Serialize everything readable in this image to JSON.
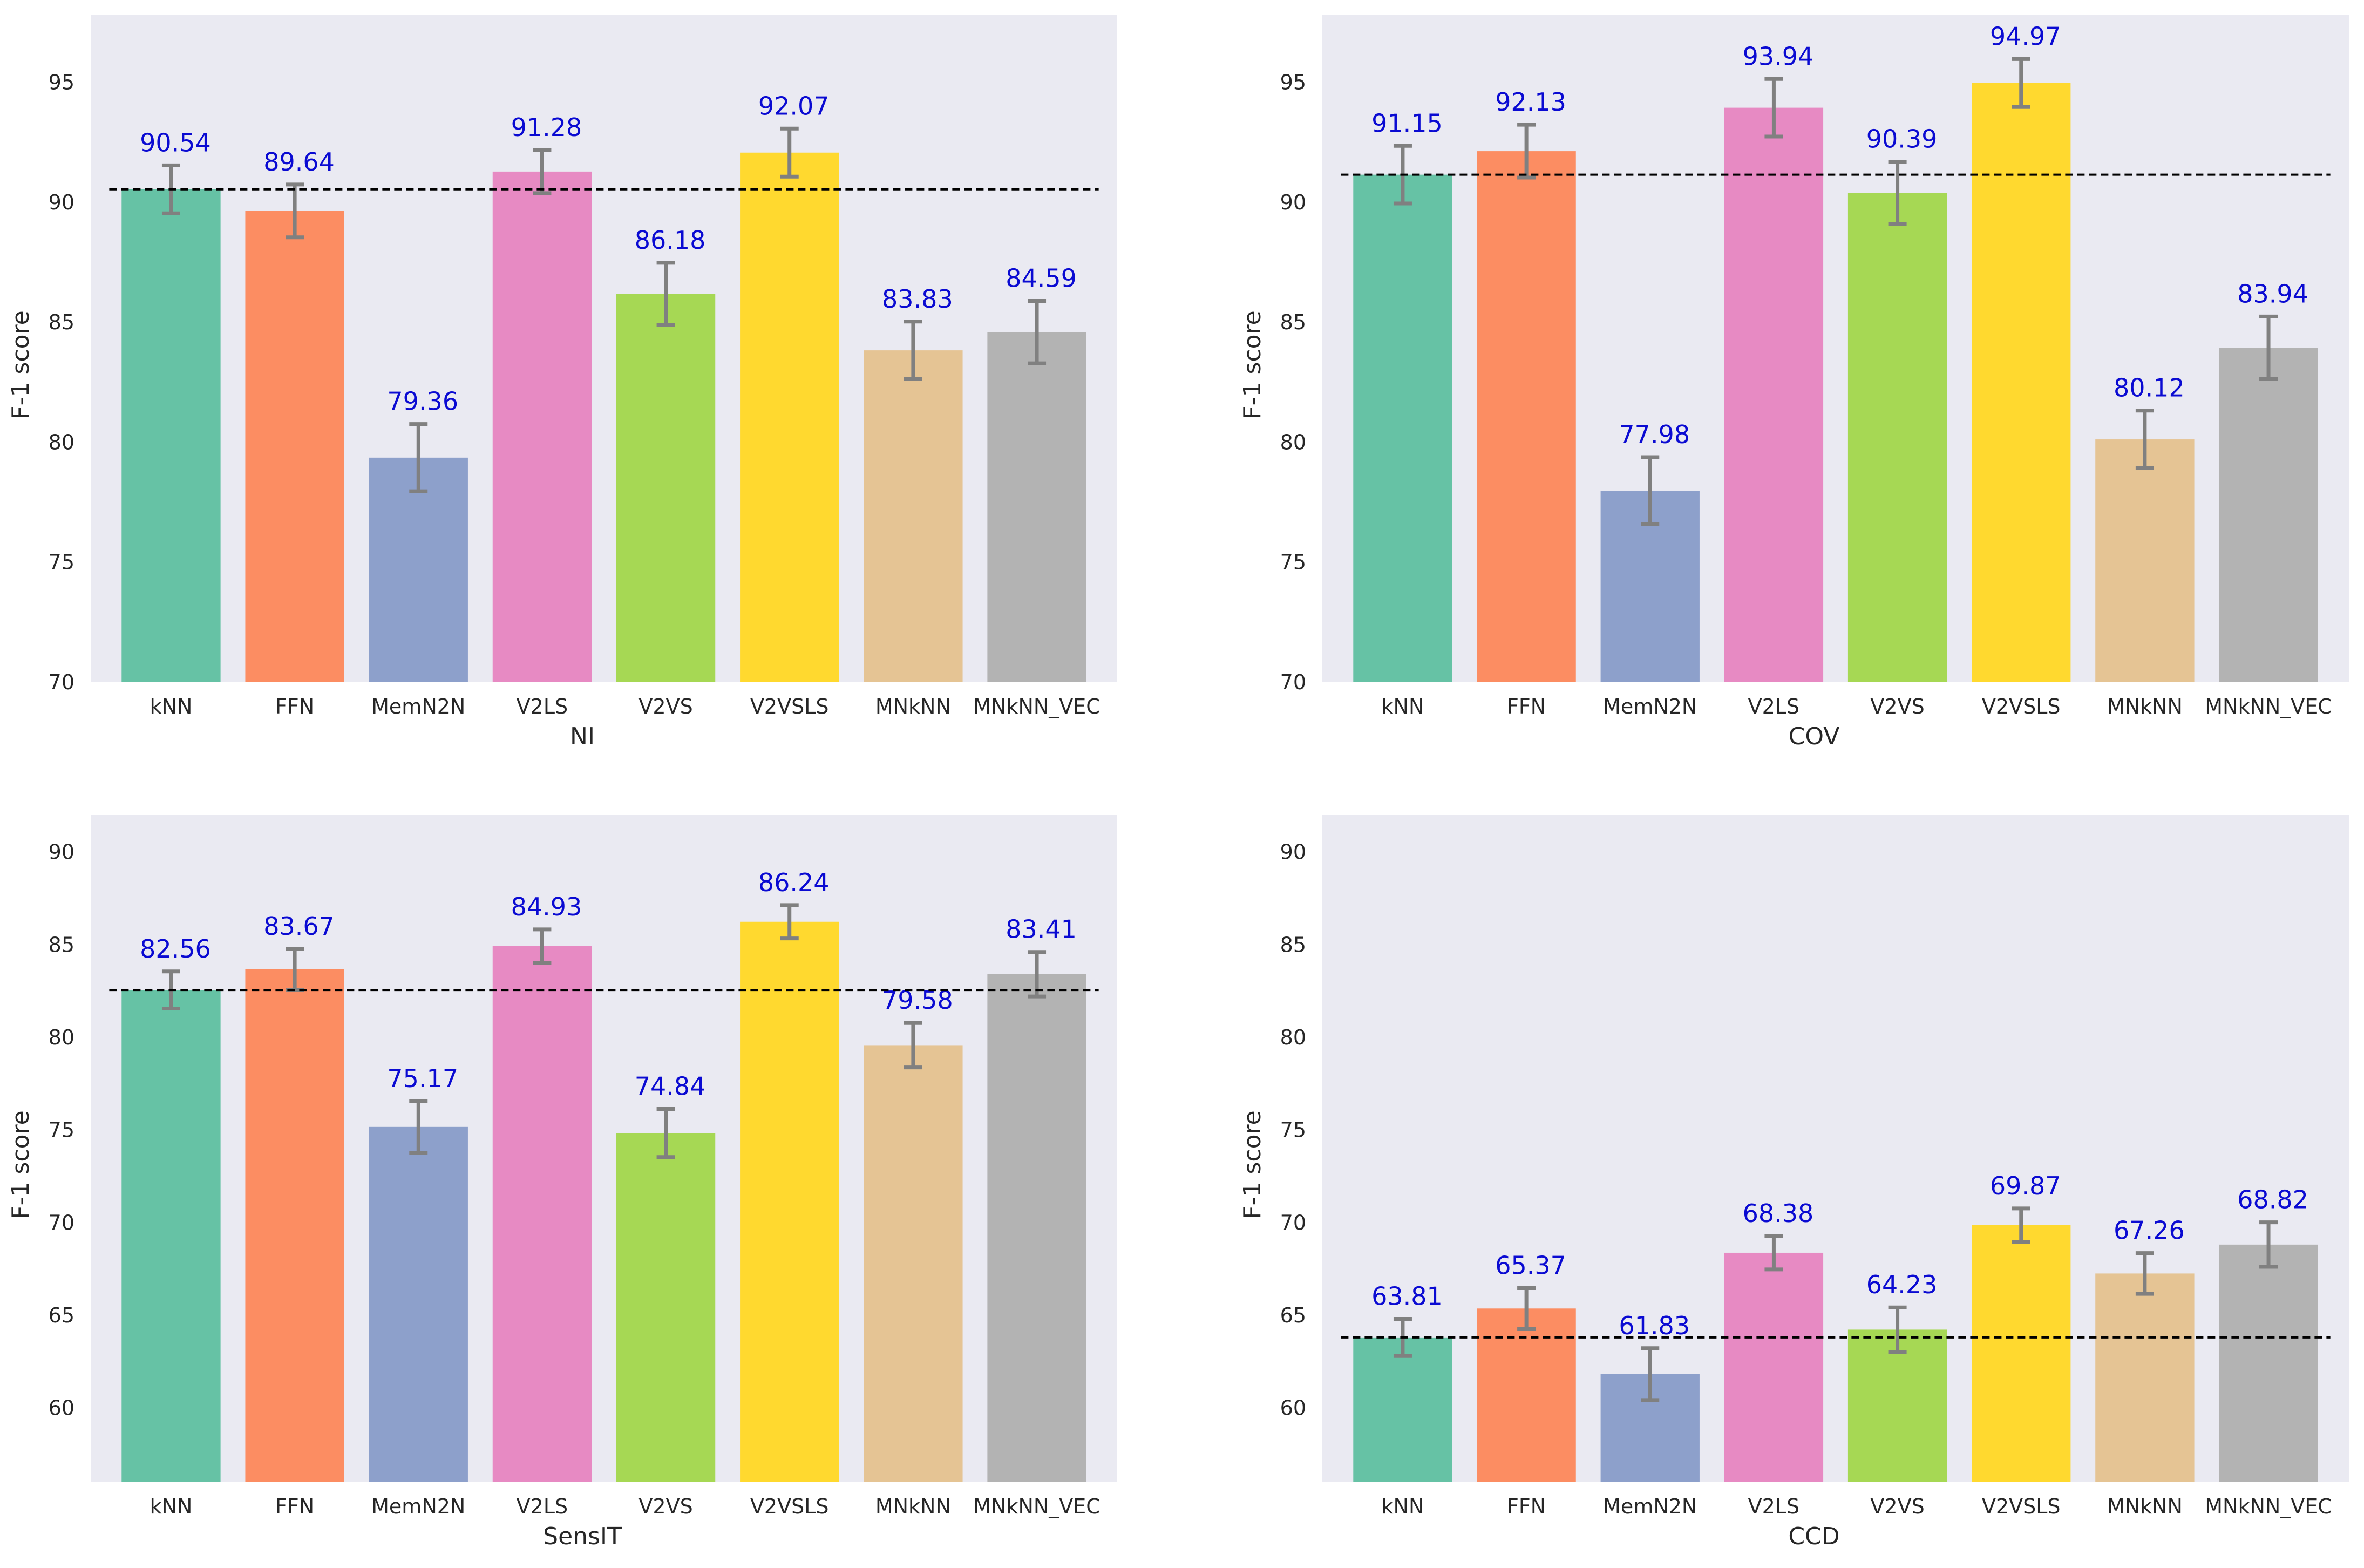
{
  "figure": {
    "background": "#ffffff",
    "panel_background": "#eaeaf2",
    "value_label_color": "#0a0ad2",
    "error_bar_color": "#808080",
    "baseline_color": "#000000",
    "colors": [
      "#66c2a5",
      "#fc8d62",
      "#8da0cb",
      "#e78ac3",
      "#a6d854",
      "#ffd92f",
      "#e5c494",
      "#b3b3b3"
    ]
  },
  "chart_data": [
    {
      "type": "bar",
      "xlabel": "NI",
      "ylabel": "F-1 score",
      "categories": [
        "kNN",
        "FFN",
        "MemN2N",
        "V2LS",
        "V2VS",
        "V2VSLS",
        "MNkNN",
        "MNkNN_VEC"
      ],
      "values": [
        90.54,
        89.64,
        79.36,
        91.28,
        86.18,
        92.07,
        83.83,
        84.59
      ],
      "value_labels": [
        "90.54",
        "89.64",
        "79.36",
        "91.28",
        "86.18",
        "92.07",
        "83.83",
        "84.59"
      ],
      "error": [
        1.0,
        1.1,
        1.4,
        0.9,
        1.3,
        1.0,
        1.2,
        1.3
      ],
      "baseline": 90.54,
      "ylim": [
        70,
        97.8
      ],
      "yticks": [
        70,
        75,
        80,
        85,
        90,
        95
      ],
      "grid": false
    },
    {
      "type": "bar",
      "xlabel": "COV",
      "ylabel": "F-1 score",
      "categories": [
        "kNN",
        "FFN",
        "MemN2N",
        "V2LS",
        "V2VS",
        "V2VSLS",
        "MNkNN",
        "MNkNN_VEC"
      ],
      "values": [
        91.15,
        92.13,
        77.98,
        93.94,
        90.39,
        94.97,
        80.12,
        83.94
      ],
      "value_labels": [
        "91.15",
        "92.13",
        "77.98",
        "93.94",
        "90.39",
        "94.97",
        "80.12",
        "83.94"
      ],
      "error": [
        1.2,
        1.1,
        1.4,
        1.2,
        1.3,
        1.0,
        1.2,
        1.3
      ],
      "baseline": 91.15,
      "ylim": [
        70,
        97.8
      ],
      "yticks": [
        70,
        75,
        80,
        85,
        90,
        95
      ],
      "grid": false
    },
    {
      "type": "bar",
      "xlabel": "SensIT",
      "ylabel": "F-1 score",
      "categories": [
        "kNN",
        "FFN",
        "MemN2N",
        "V2LS",
        "V2VS",
        "V2VSLS",
        "MNkNN",
        "MNkNN_VEC"
      ],
      "values": [
        82.56,
        83.67,
        75.17,
        84.93,
        74.84,
        86.24,
        79.58,
        83.41
      ],
      "value_labels": [
        "82.56",
        "83.67",
        "75.17",
        "84.93",
        "74.84",
        "86.24",
        "79.58",
        "83.41"
      ],
      "error": [
        1.0,
        1.1,
        1.4,
        0.9,
        1.3,
        0.9,
        1.2,
        1.2
      ],
      "baseline": 82.56,
      "ylim": [
        56,
        92
      ],
      "yticks": [
        60,
        65,
        70,
        75,
        80,
        85,
        90
      ],
      "grid": false
    },
    {
      "type": "bar",
      "xlabel": "CCD",
      "ylabel": "F-1 score",
      "categories": [
        "kNN",
        "FFN",
        "MemN2N",
        "V2LS",
        "V2VS",
        "V2VSLS",
        "MNkNN",
        "MNkNN_VEC"
      ],
      "values": [
        63.81,
        65.37,
        61.83,
        68.38,
        64.23,
        69.87,
        67.26,
        68.82
      ],
      "value_labels": [
        "63.81",
        "65.37",
        "61.83",
        "68.38",
        "64.23",
        "69.87",
        "67.26",
        "68.82"
      ],
      "error": [
        1.0,
        1.1,
        1.4,
        0.9,
        1.2,
        0.9,
        1.1,
        1.2
      ],
      "baseline": 63.81,
      "ylim": [
        56,
        92
      ],
      "yticks": [
        60,
        65,
        70,
        75,
        80,
        85,
        90
      ],
      "grid": false
    }
  ]
}
